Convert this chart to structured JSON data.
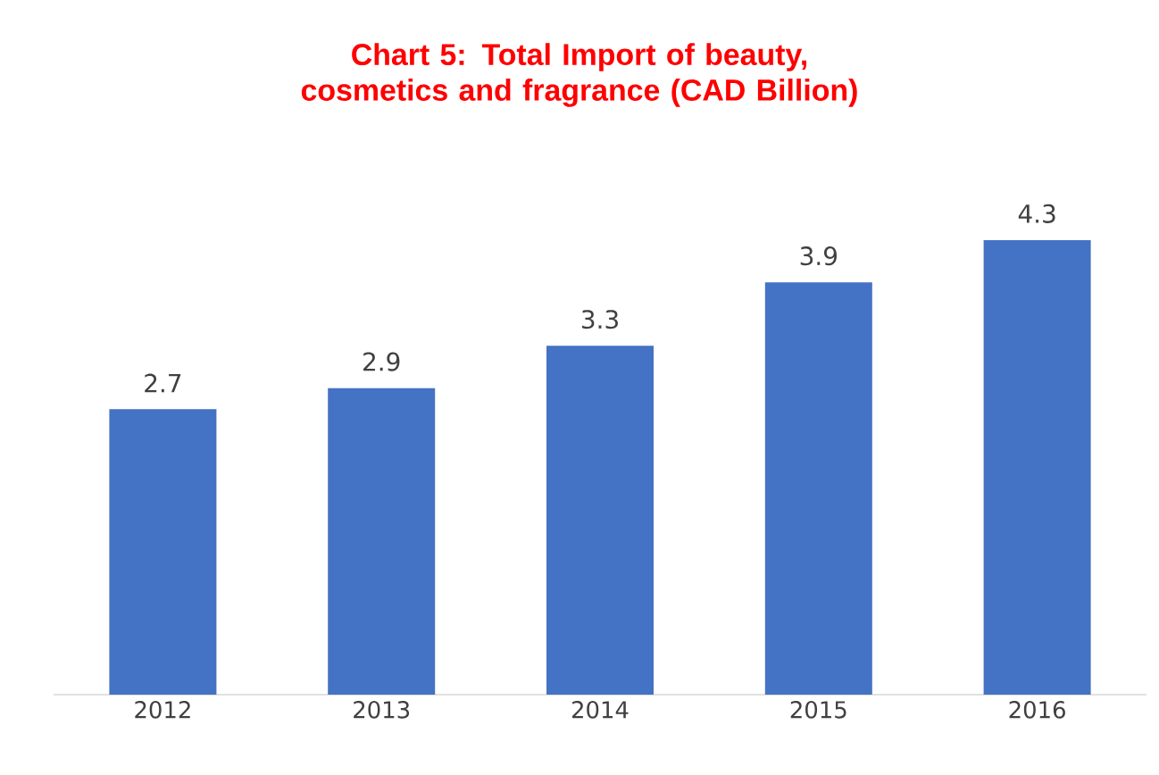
{
  "chart_data": {
    "type": "bar",
    "title": "Chart 5: Total Import of beauty, cosmetics and fragrance (CAD Billion)",
    "categories": [
      "2012",
      "2013",
      "2014",
      "2015",
      "2016"
    ],
    "values": [
      2.7,
      2.9,
      3.3,
      3.9,
      4.3
    ],
    "color": "#4472c4",
    "data_labels": true,
    "tick_labels": "x"
  }
}
